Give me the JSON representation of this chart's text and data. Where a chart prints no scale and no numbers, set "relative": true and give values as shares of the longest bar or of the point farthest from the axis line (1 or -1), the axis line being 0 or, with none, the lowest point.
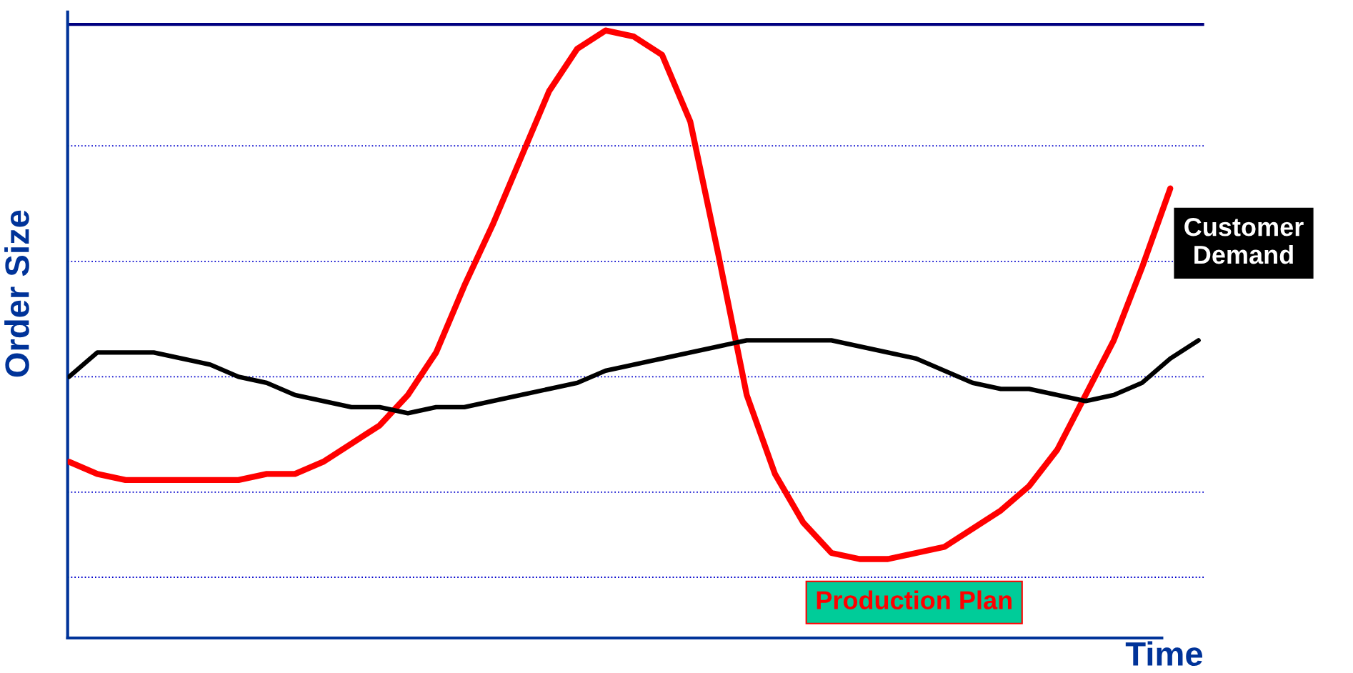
{
  "chart_data": {
    "type": "line",
    "relative": true,
    "xlabel": "Time",
    "ylabel": "Order Size",
    "categories": [
      null,
      null,
      null,
      null,
      null,
      null,
      null,
      null,
      null,
      null,
      null,
      null,
      null,
      null,
      null,
      null,
      null,
      null,
      null,
      null,
      null,
      null,
      null,
      null,
      null,
      null,
      null,
      null,
      null,
      null,
      null,
      null,
      null,
      null,
      null,
      null,
      null,
      null,
      null,
      null,
      null
    ],
    "series": [
      {
        "name": "Production Plan",
        "color": "#ff0000",
        "values": [
          0.29,
          0.27,
          0.26,
          0.26,
          0.26,
          0.26,
          0.26,
          0.27,
          0.27,
          0.29,
          0.32,
          0.35,
          0.4,
          0.47,
          0.58,
          0.68,
          0.79,
          0.9,
          0.97,
          1.0,
          0.99,
          0.96,
          0.85,
          0.63,
          0.4,
          0.27,
          0.19,
          0.14,
          0.13,
          0.13,
          0.14,
          0.15,
          0.18,
          0.21,
          0.25,
          0.31,
          0.4,
          0.49,
          0.61,
          0.74,
          null
        ]
      },
      {
        "name": "Customer Demand",
        "color": "#000000",
        "values": [
          0.43,
          0.47,
          0.47,
          0.47,
          0.46,
          0.45,
          0.43,
          0.42,
          0.4,
          0.39,
          0.38,
          0.38,
          0.37,
          0.38,
          0.38,
          0.39,
          0.4,
          0.41,
          0.42,
          0.44,
          0.45,
          0.46,
          0.47,
          0.48,
          0.49,
          0.49,
          0.49,
          0.49,
          0.48,
          0.47,
          0.46,
          0.44,
          0.42,
          0.41,
          0.41,
          0.4,
          0.39,
          0.4,
          0.42,
          0.46,
          0.49
        ]
      }
    ],
    "ref_lines": [
      {
        "axis": "y",
        "value": 1.01,
        "color": "#000080",
        "line_style": "solid"
      },
      {
        "axis": "y",
        "value": 0.81,
        "color": "#0000cc",
        "line_style": "dotted"
      },
      {
        "axis": "y",
        "value": 0.62,
        "color": "#0000cc",
        "line_style": "dotted"
      },
      {
        "axis": "y",
        "value": 0.43,
        "color": "#0000cc",
        "line_style": "dotted"
      },
      {
        "axis": "y",
        "value": 0.24,
        "color": "#0000cc",
        "line_style": "dotted"
      },
      {
        "axis": "y",
        "value": 0.1,
        "color": "#0000cc",
        "line_style": "dotted"
      }
    ],
    "legend": false,
    "marker": "none",
    "line_style": "solid"
  }
}
